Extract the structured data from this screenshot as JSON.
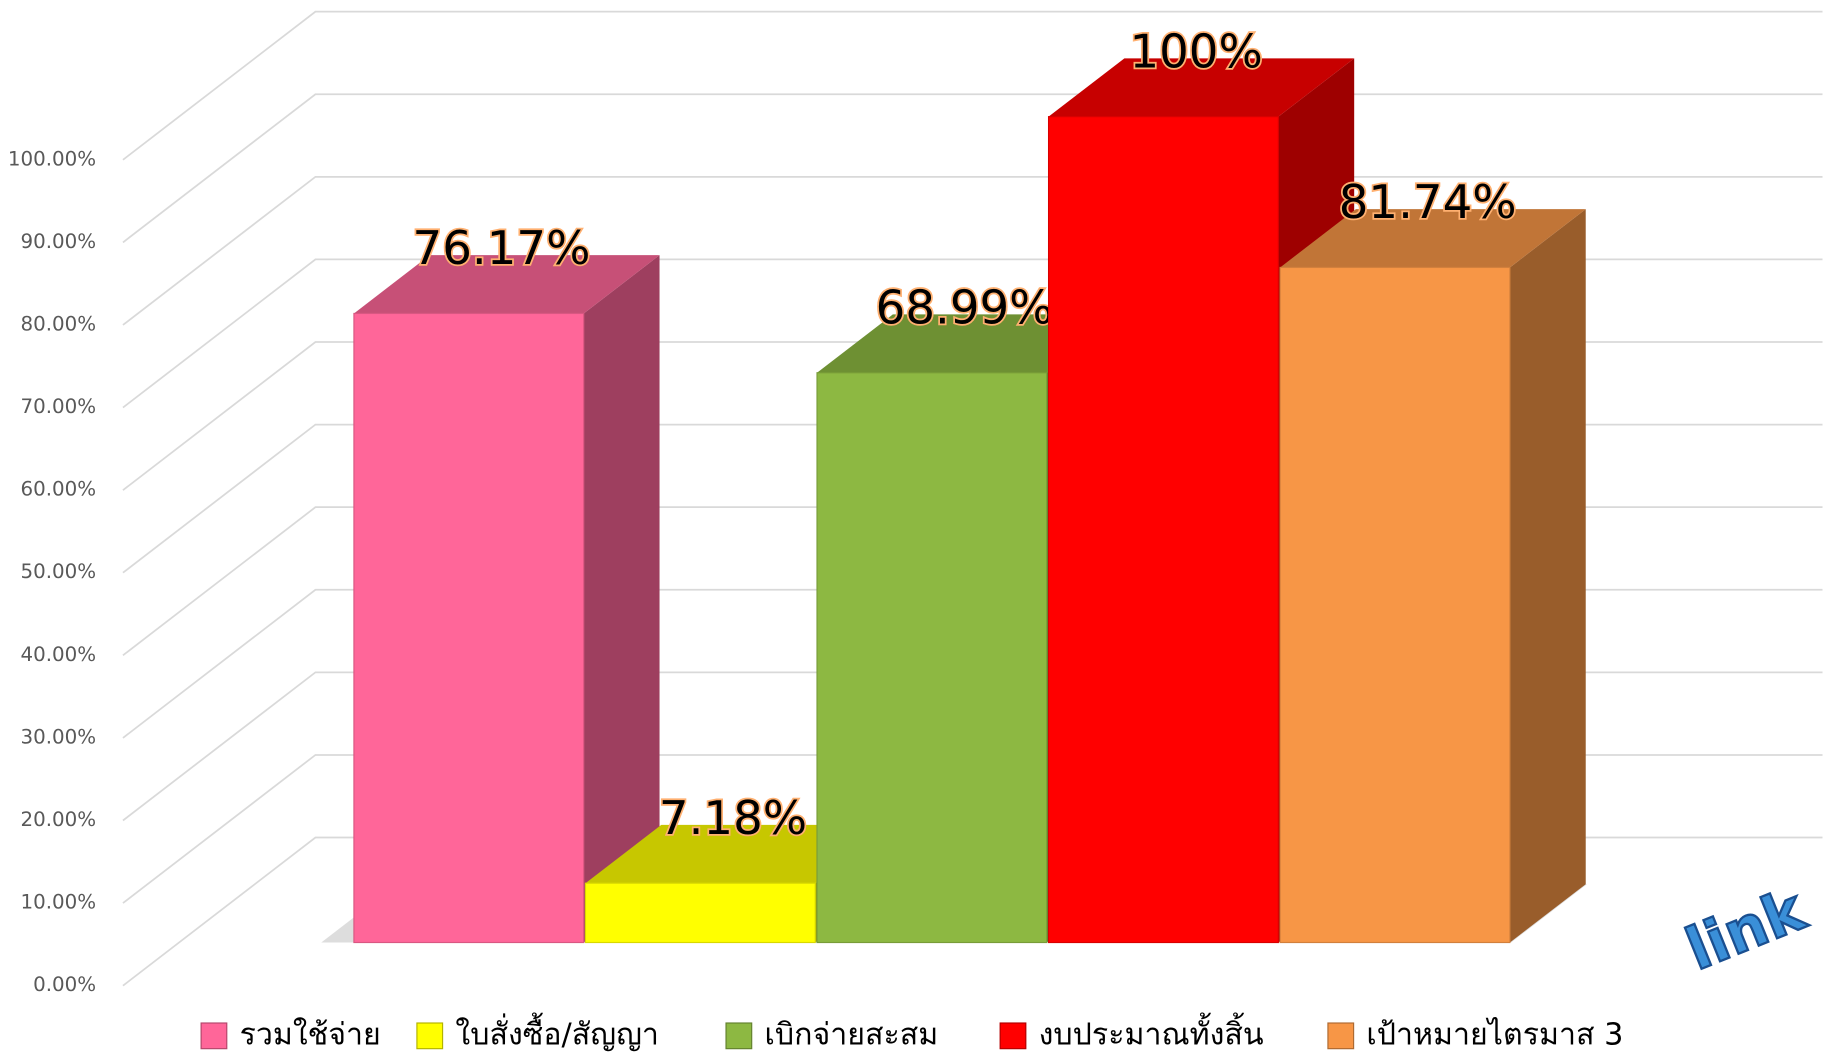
{
  "chart_data": {
    "type": "bar3d",
    "series": [
      {
        "name": "รวมใช้จ่าย",
        "color": "#ff6699",
        "values": [
          76.17
        ],
        "value_labels": [
          "76.17%"
        ]
      },
      {
        "name": "ใบสั่งซื้อ/สัญญา",
        "color": "#ffff00",
        "values": [
          7.18
        ],
        "value_labels": [
          "7.18%"
        ]
      },
      {
        "name": "เบิกจ่ายสะสม",
        "color": "#8db842",
        "values": [
          68.99
        ],
        "value_labels": [
          "68.99%"
        ]
      },
      {
        "name": "งบประมาณทั้งสิ้น",
        "color": "#ff0000",
        "values": [
          100
        ],
        "value_labels": [
          "100%"
        ]
      },
      {
        "name": "เป้าหมายไตรมาส 3",
        "color": "#f79646",
        "values": [
          81.74
        ],
        "value_labels": [
          "81.74%"
        ]
      }
    ],
    "ylim": [
      0,
      100
    ],
    "yticks": [
      {
        "value": 0,
        "label": "0.00%"
      },
      {
        "value": 10,
        "label": "10.00%"
      },
      {
        "value": 20,
        "label": "20.00%"
      },
      {
        "value": 30,
        "label": "30.00%"
      },
      {
        "value": 40,
        "label": "40.00%"
      },
      {
        "value": 50,
        "label": "50.00%"
      },
      {
        "value": 60,
        "label": "60.00%"
      },
      {
        "value": 70,
        "label": "70.00%"
      },
      {
        "value": 80,
        "label": "80.00%"
      },
      {
        "value": 90,
        "label": "90.00%"
      },
      {
        "value": 100,
        "label": "100.00%"
      }
    ],
    "grid": true,
    "legend": "bottom",
    "link_badge": "link"
  }
}
